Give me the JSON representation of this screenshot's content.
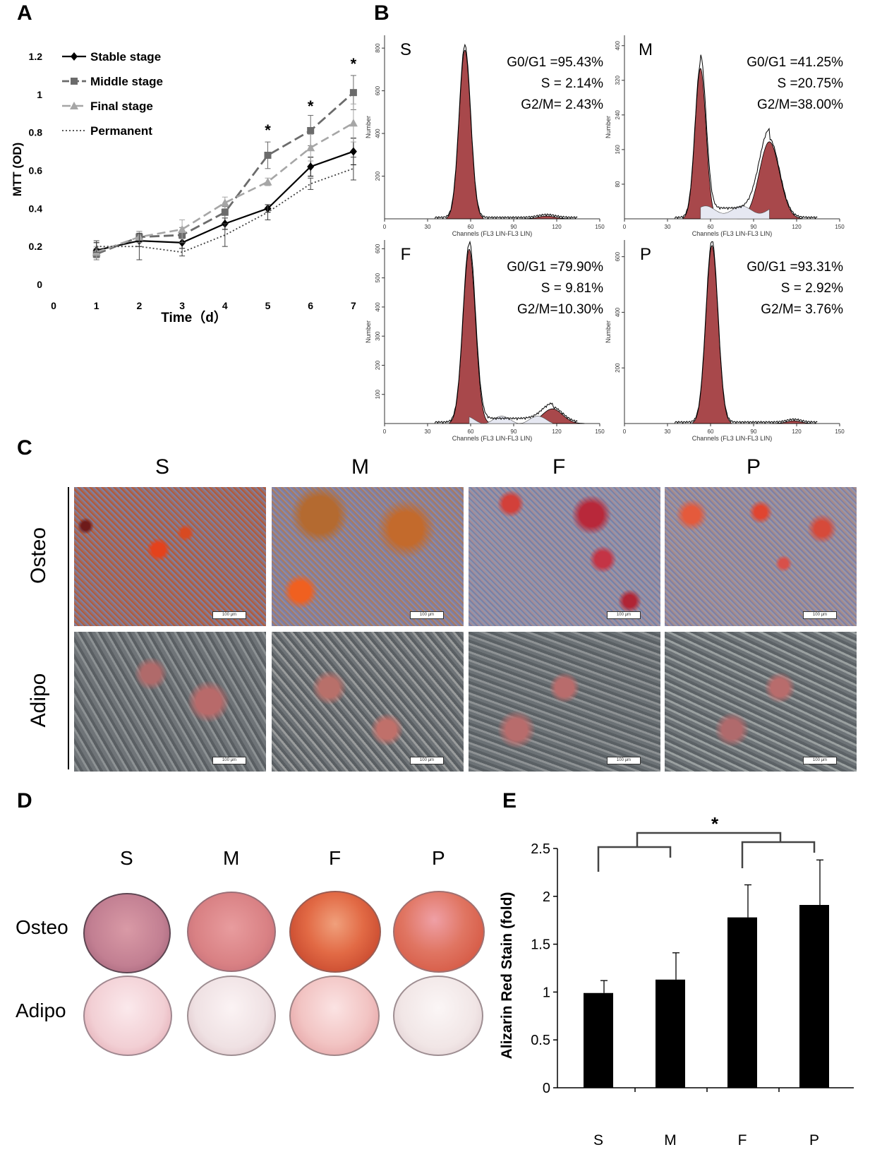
{
  "panels": {
    "A": "A",
    "B": "B",
    "C": "C",
    "D": "D",
    "E": "E"
  },
  "colors": {
    "histogram": "#a8484b",
    "dark": "#000000",
    "middle": "#6b6b6b",
    "final": "#a6a6a6",
    "permanent": "#404040"
  },
  "panel_a": {
    "ylabel": "MTT (OD)",
    "xlabel": "Time（d）",
    "yticks": [
      "0",
      "0.2",
      "0.4",
      "0.6",
      "0.8",
      "1",
      "1.2"
    ],
    "xticks": [
      "0",
      "1",
      "2",
      "3",
      "4",
      "5",
      "6",
      "7"
    ],
    "legend": [
      "Stable stage",
      "Middle stage",
      "Final stage",
      "Permanent"
    ],
    "star": "*"
  },
  "panel_b": {
    "xlabel": "Channels (FL3 LIN-FL3 LIN)",
    "ylabel": "Number",
    "xticks": [
      "0",
      "30",
      "60",
      "90",
      "120",
      "150"
    ],
    "plots": [
      {
        "letter": "S",
        "stats": [
          "G0/G1 =95.43%",
          "S =  2.14%",
          "G2/M=  2.43%"
        ],
        "yticks": [
          "200",
          "400",
          "600",
          "800"
        ]
      },
      {
        "letter": "M",
        "stats": [
          "G0/G1 =41.25%",
          "S =20.75%",
          "G2/M=38.00%"
        ],
        "yticks": [
          "80",
          "160",
          "240",
          "320",
          "400"
        ]
      },
      {
        "letter": "F",
        "stats": [
          "G0/G1 =79.90%",
          "S =  9.81%",
          "G2/M=10.30%"
        ],
        "yticks": [
          "100",
          "200",
          "300",
          "400",
          "500",
          "600"
        ]
      },
      {
        "letter": "P",
        "stats": [
          "G0/G1 =93.31%",
          "S =  2.92%",
          "G2/M=  3.76%"
        ],
        "yticks": [
          "200",
          "400",
          "600"
        ]
      }
    ]
  },
  "panel_c": {
    "columns": [
      "S",
      "M",
      "F",
      "P"
    ],
    "rows": [
      "Osteo",
      "Adipo"
    ],
    "scalebar": "100 μm"
  },
  "panel_d": {
    "columns": [
      "S",
      "M",
      "F",
      "P"
    ],
    "rows": [
      "Osteo",
      "Adipo"
    ]
  },
  "chart_data": [
    {
      "type": "line",
      "xlabel": "Time（d）",
      "ylabel": "MTT (OD)",
      "x": [
        1,
        2,
        3,
        4,
        5,
        6,
        7
      ],
      "xlim": [
        0,
        7
      ],
      "ylim": [
        0,
        1.2
      ],
      "series": [
        {
          "name": "Stable stage",
          "values": [
            0.18,
            0.23,
            0.22,
            0.32,
            0.4,
            0.62,
            0.7
          ],
          "errors": [
            0.04,
            0.03,
            0.03,
            0.03,
            0.02,
            0.05,
            0.07
          ]
        },
        {
          "name": "Middle stage",
          "values": [
            0.16,
            0.25,
            0.26,
            0.38,
            0.68,
            0.81,
            1.01
          ],
          "errors": [
            0.03,
            0.03,
            0.04,
            0.03,
            0.07,
            0.08,
            0.09
          ]
        },
        {
          "name": "Final stage",
          "values": [
            0.17,
            0.25,
            0.29,
            0.43,
            0.54,
            0.72,
            0.85
          ],
          "errors": [
            0.03,
            0.03,
            0.05,
            0.03,
            0.02,
            0.07,
            0.1
          ]
        },
        {
          "name": "Permanent",
          "values": [
            0.2,
            0.2,
            0.17,
            0.26,
            0.38,
            0.53,
            0.61
          ],
          "errors": [
            0.03,
            0.07,
            0.02,
            0.06,
            0.04,
            0.03,
            0.06
          ]
        }
      ],
      "significance": {
        "x": [
          5,
          6,
          7
        ],
        "label": "*"
      }
    },
    {
      "type": "bar",
      "ylabel": "Alizarin Red Stain (fold)",
      "categories": [
        "S",
        "M",
        "F",
        "P"
      ],
      "values": [
        0.99,
        1.13,
        1.78,
        1.91
      ],
      "errors": [
        0.13,
        0.28,
        0.34,
        0.47
      ],
      "ylim": [
        0,
        2.5
      ],
      "yticks": [
        "0",
        "0.5",
        "1",
        "1.5",
        "2",
        "2.5"
      ],
      "significance": "*"
    }
  ]
}
